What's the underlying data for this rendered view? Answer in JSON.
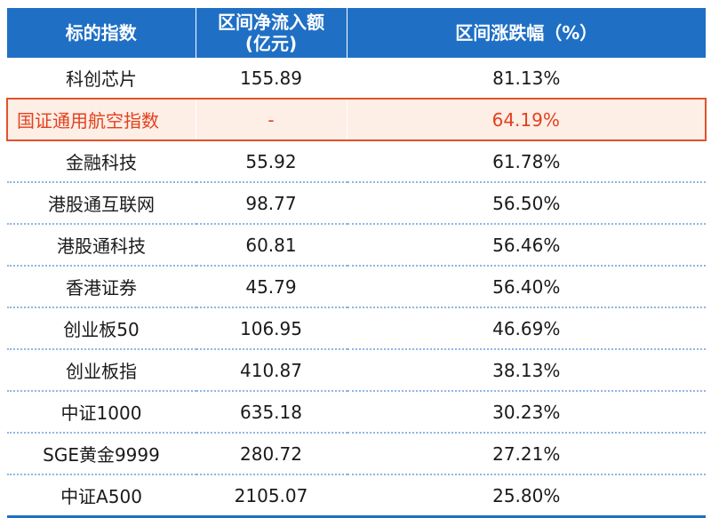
{
  "table": {
    "headers": [
      "标的指数",
      "区间净流入额\n(亿元)",
      "区间涨跌幅（%）"
    ],
    "header_line1": "区间净流入额",
    "header_line2": "(亿元)",
    "highlight_color": "#e2411e",
    "header_bg": "#1f6fc5",
    "rows": [
      {
        "name": "科创芯片",
        "inflow": "155.89",
        "change": "81.13%"
      },
      {
        "name": "国证通用航空指数",
        "inflow": "-",
        "change": "64.19%",
        "highlight": true
      },
      {
        "name": "金融科技",
        "inflow": "55.92",
        "change": "61.78%"
      },
      {
        "name": "港股通互联网",
        "inflow": "98.77",
        "change": "56.50%"
      },
      {
        "name": "港股通科技",
        "inflow": "60.81",
        "change": "56.46%"
      },
      {
        "name": "香港证券",
        "inflow": "45.79",
        "change": "56.40%"
      },
      {
        "name": "创业板50",
        "inflow": "106.95",
        "change": "46.69%"
      },
      {
        "name": "创业板指",
        "inflow": "410.87",
        "change": "38.13%"
      },
      {
        "name": "中证1000",
        "inflow": "635.18",
        "change": "30.23%"
      },
      {
        "name": "SGE黄金9999",
        "inflow": "280.72",
        "change": "27.21%"
      },
      {
        "name": "中证A500",
        "inflow": "2105.07",
        "change": "25.80%"
      }
    ]
  }
}
